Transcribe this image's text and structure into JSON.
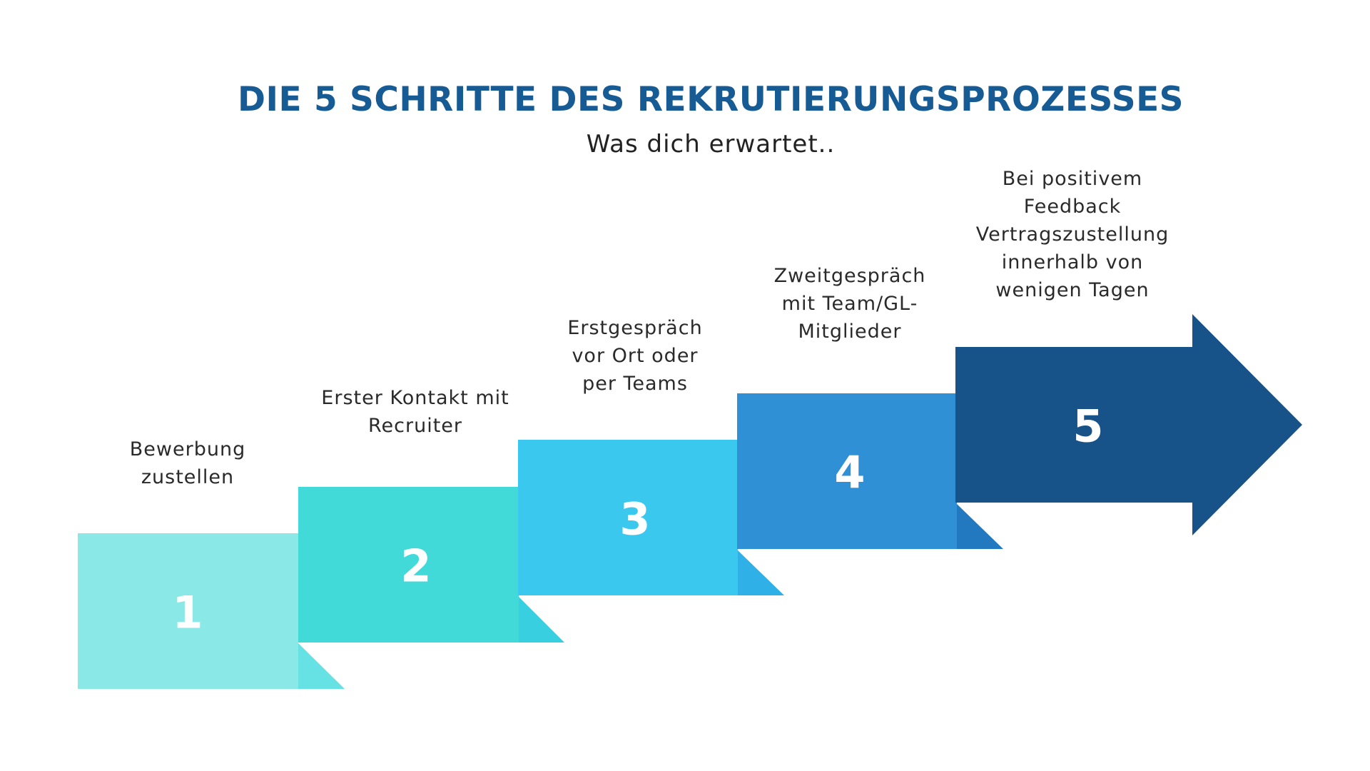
{
  "header": {
    "title": "DIE 5 SCHRITTE DES REKRUTIERUNGSPROZESSES",
    "subtitle": "Was dich erwartet.."
  },
  "steps": [
    {
      "number": "1",
      "label_lines": [
        "Bewerbung",
        "zustellen"
      ],
      "color": "#8ae8e7",
      "fold_color": "#66e2e4"
    },
    {
      "number": "2",
      "label_lines": [
        "Erster Kontakt mit",
        "Recruiter"
      ],
      "color": "#41dad8",
      "fold_color": "#38cfe0"
    },
    {
      "number": "3",
      "label_lines": [
        "Erstgespräch",
        "vor Ort oder",
        "per Teams"
      ],
      "color": "#3ac8ee",
      "fold_color": "#2fb0e6"
    },
    {
      "number": "4",
      "label_lines": [
        "Zweitgespräch",
        "mit Team/GL-",
        "Mitglieder"
      ],
      "color": "#3090d5",
      "fold_color": "#2379c0"
    },
    {
      "number": "5",
      "label_lines": [
        "Bei positivem",
        "Feedback",
        "Vertragszustellung",
        "innerhalb von",
        "wenigen Tagen"
      ],
      "color": "#175289"
    }
  ]
}
